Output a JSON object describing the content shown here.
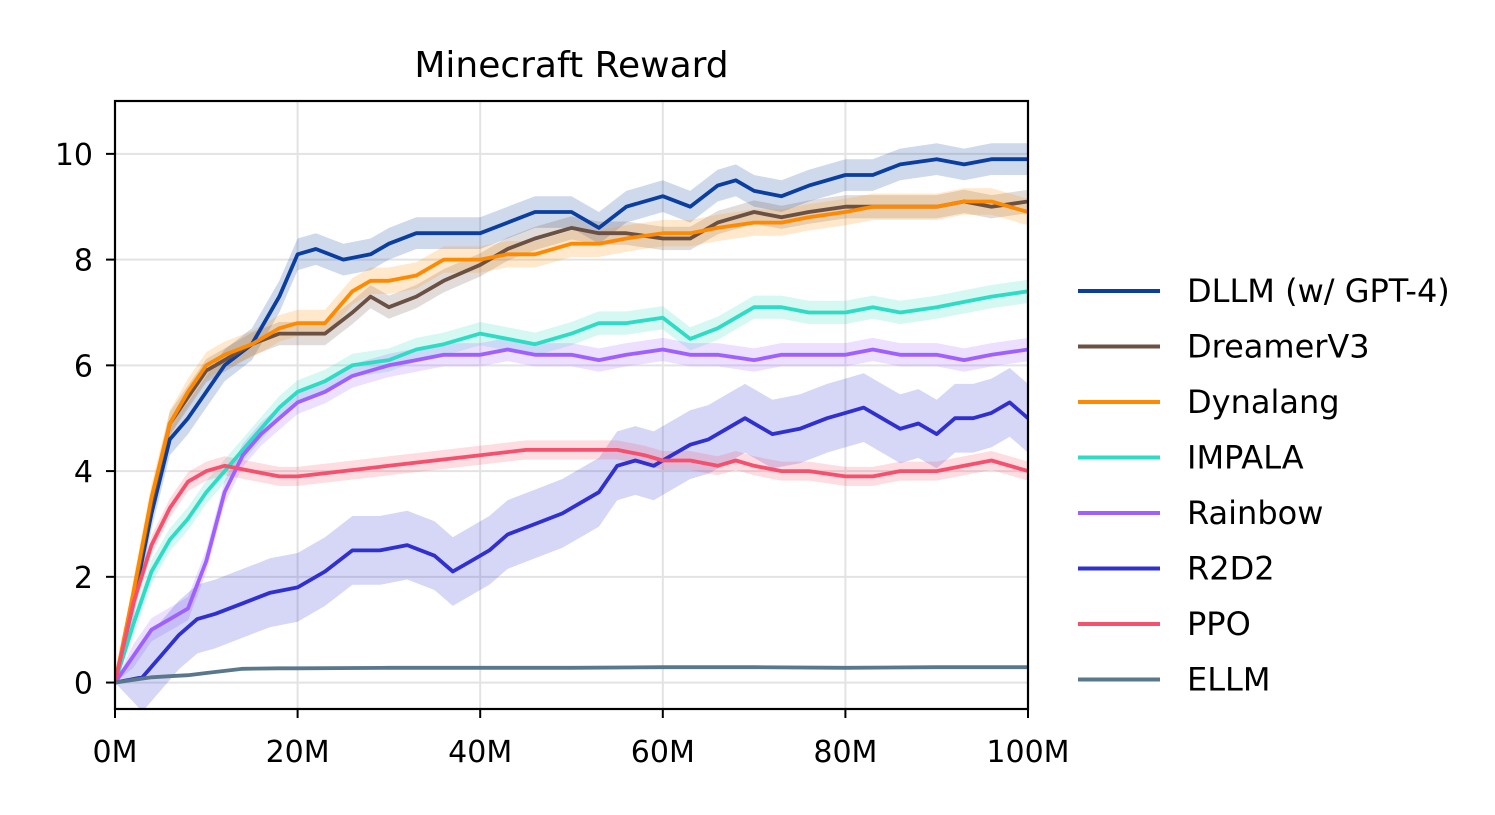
{
  "chart_data": {
    "type": "line",
    "title": "Minecraft Reward",
    "xlabel": "",
    "ylabel": "",
    "xlim": [
      0,
      100
    ],
    "ylim": [
      -0.5,
      11
    ],
    "x_unit": "M",
    "x_ticks": [
      0,
      20,
      40,
      60,
      80,
      100
    ],
    "x_tick_labels": [
      "0M",
      "20M",
      "40M",
      "60M",
      "80M",
      "100M"
    ],
    "y_ticks": [
      0,
      2,
      4,
      6,
      8,
      10
    ],
    "y_tick_labels": [
      "0",
      "2",
      "4",
      "6",
      "8",
      "10"
    ],
    "grid": true,
    "legend_position": "right",
    "series": [
      {
        "name": "DLLM (w/ GPT-4)",
        "color": "#0a3fa0",
        "band": 0.3,
        "x": [
          0,
          2,
          4,
          6,
          8,
          10,
          12,
          15,
          18,
          20,
          22,
          25,
          28,
          30,
          33,
          36,
          40,
          43,
          46,
          50,
          53,
          56,
          60,
          63,
          66,
          68,
          70,
          73,
          76,
          80,
          83,
          86,
          90,
          93,
          96,
          100
        ],
        "y": [
          0,
          1.5,
          3.2,
          4.6,
          5.0,
          5.5,
          6.0,
          6.4,
          7.3,
          8.1,
          8.2,
          8.0,
          8.1,
          8.3,
          8.5,
          8.5,
          8.5,
          8.7,
          8.9,
          8.9,
          8.6,
          9.0,
          9.2,
          9.0,
          9.4,
          9.5,
          9.3,
          9.2,
          9.4,
          9.6,
          9.6,
          9.8,
          9.9,
          9.8,
          9.9,
          9.9
        ]
      },
      {
        "name": "DreamerV3",
        "color": "#6b5044",
        "band": 0.22,
        "x": [
          0,
          2,
          4,
          6,
          8,
          10,
          12,
          15,
          18,
          20,
          23,
          26,
          28,
          30,
          33,
          36,
          40,
          43,
          46,
          50,
          53,
          56,
          60,
          63,
          66,
          70,
          73,
          76,
          80,
          83,
          86,
          90,
          93,
          96,
          100
        ],
        "y": [
          0,
          1.6,
          3.4,
          4.9,
          5.4,
          5.9,
          6.1,
          6.4,
          6.6,
          6.6,
          6.6,
          7.0,
          7.3,
          7.1,
          7.3,
          7.6,
          7.9,
          8.2,
          8.4,
          8.6,
          8.5,
          8.5,
          8.4,
          8.4,
          8.7,
          8.9,
          8.8,
          8.9,
          9.0,
          9.0,
          9.0,
          9.0,
          9.1,
          9.0,
          9.1
        ]
      },
      {
        "name": "Dynalang",
        "color": "#ff8a00",
        "band": 0.25,
        "x": [
          0,
          2,
          4,
          6,
          8,
          10,
          12,
          15,
          18,
          20,
          23,
          26,
          28,
          30,
          33,
          36,
          40,
          43,
          46,
          50,
          53,
          56,
          60,
          63,
          66,
          70,
          73,
          76,
          80,
          83,
          86,
          90,
          93,
          96,
          100
        ],
        "y": [
          0,
          1.7,
          3.5,
          4.9,
          5.5,
          6.0,
          6.2,
          6.4,
          6.7,
          6.8,
          6.8,
          7.4,
          7.6,
          7.6,
          7.7,
          8.0,
          8.0,
          8.1,
          8.1,
          8.3,
          8.3,
          8.4,
          8.5,
          8.5,
          8.6,
          8.7,
          8.7,
          8.8,
          8.9,
          9.0,
          9.0,
          9.0,
          9.1,
          9.1,
          8.9
        ]
      },
      {
        "name": "IMPALA",
        "color": "#2ddcc4",
        "band": 0.22,
        "x": [
          0,
          2,
          4,
          6,
          8,
          10,
          12,
          15,
          18,
          20,
          23,
          26,
          30,
          33,
          36,
          40,
          43,
          46,
          50,
          53,
          56,
          60,
          63,
          66,
          70,
          73,
          76,
          80,
          83,
          86,
          90,
          93,
          96,
          100
        ],
        "y": [
          0,
          1.1,
          2.1,
          2.7,
          3.1,
          3.6,
          4.0,
          4.6,
          5.2,
          5.5,
          5.7,
          6.0,
          6.1,
          6.3,
          6.4,
          6.6,
          6.5,
          6.4,
          6.6,
          6.8,
          6.8,
          6.9,
          6.5,
          6.7,
          7.1,
          7.1,
          7.0,
          7.0,
          7.1,
          7.0,
          7.1,
          7.2,
          7.3,
          7.4
        ]
      },
      {
        "name": "Rainbow",
        "color": "#a060ff",
        "band": 0.22,
        "x": [
          0,
          2,
          4,
          6,
          8,
          10,
          12,
          14,
          16,
          18,
          20,
          23,
          26,
          30,
          33,
          36,
          40,
          43,
          46,
          50,
          53,
          56,
          60,
          63,
          66,
          70,
          73,
          76,
          80,
          83,
          86,
          90,
          93,
          96,
          100
        ],
        "y": [
          0,
          0.5,
          1.0,
          1.2,
          1.4,
          2.3,
          3.6,
          4.3,
          4.7,
          5.0,
          5.3,
          5.5,
          5.8,
          6.0,
          6.1,
          6.2,
          6.2,
          6.3,
          6.2,
          6.2,
          6.1,
          6.2,
          6.3,
          6.2,
          6.2,
          6.1,
          6.2,
          6.2,
          6.2,
          6.3,
          6.2,
          6.2,
          6.1,
          6.2,
          6.3
        ]
      },
      {
        "name": "R2D2",
        "color": "#3030d0",
        "band": 0.65,
        "x": [
          0,
          3,
          5,
          7,
          9,
          11,
          14,
          17,
          20,
          23,
          26,
          29,
          32,
          35,
          37,
          39,
          41,
          43,
          46,
          49,
          51,
          53,
          55,
          57,
          59,
          61,
          63,
          65,
          67,
          69,
          72,
          75,
          78,
          80,
          82,
          84,
          86,
          88,
          90,
          92,
          94,
          96,
          98,
          100
        ],
        "y": [
          0,
          0.1,
          0.5,
          0.9,
          1.2,
          1.3,
          1.5,
          1.7,
          1.8,
          2.1,
          2.5,
          2.5,
          2.6,
          2.4,
          2.1,
          2.3,
          2.5,
          2.8,
          3.0,
          3.2,
          3.4,
          3.6,
          4.1,
          4.2,
          4.1,
          4.3,
          4.5,
          4.6,
          4.8,
          5.0,
          4.7,
          4.8,
          5.0,
          5.1,
          5.2,
          5.0,
          4.8,
          4.9,
          4.7,
          5.0,
          5.0,
          5.1,
          5.3,
          5.0
        ]
      },
      {
        "name": "PPO",
        "color": "#f5506e",
        "band": 0.18,
        "x": [
          0,
          2,
          4,
          6,
          8,
          10,
          12,
          15,
          18,
          20,
          25,
          30,
          35,
          40,
          45,
          50,
          55,
          58,
          60,
          63,
          66,
          68,
          70,
          73,
          76,
          80,
          83,
          86,
          90,
          93,
          96,
          100
        ],
        "y": [
          0,
          1.5,
          2.6,
          3.3,
          3.8,
          4.0,
          4.1,
          4.0,
          3.9,
          3.9,
          4.0,
          4.1,
          4.2,
          4.3,
          4.4,
          4.4,
          4.4,
          4.3,
          4.2,
          4.2,
          4.1,
          4.2,
          4.1,
          4.0,
          4.0,
          3.9,
          3.9,
          4.0,
          4.0,
          4.1,
          4.2,
          4.0
        ]
      },
      {
        "name": "ELLM",
        "color": "#5a788c",
        "band": 0.0,
        "x": [
          0,
          2,
          4,
          6,
          8,
          10,
          12,
          14,
          18,
          20,
          30,
          40,
          50,
          60,
          70,
          80,
          90,
          100
        ],
        "y": [
          0,
          0.05,
          0.1,
          0.12,
          0.14,
          0.18,
          0.22,
          0.26,
          0.27,
          0.27,
          0.28,
          0.28,
          0.28,
          0.29,
          0.29,
          0.28,
          0.29,
          0.29
        ]
      }
    ]
  }
}
